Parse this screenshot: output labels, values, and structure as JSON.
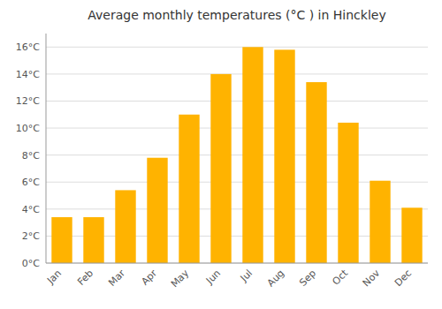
{
  "chart_data": {
    "type": "bar",
    "title": "Average monthly temperatures (°C ) in Hinckley",
    "categories": [
      "Jan",
      "Feb",
      "Mar",
      "Apr",
      "May",
      "Jun",
      "Jul",
      "Aug",
      "Sep",
      "Oct",
      "Nov",
      "Dec"
    ],
    "values": [
      3.4,
      3.4,
      5.4,
      7.8,
      11.0,
      14.0,
      16.0,
      15.8,
      13.4,
      10.4,
      6.1,
      4.1
    ],
    "color": "#FFB300",
    "ylim": [
      0,
      17
    ],
    "yticks": [
      {
        "value": 0,
        "label": "0°C"
      },
      {
        "value": 2,
        "label": "2°C"
      },
      {
        "value": 4,
        "label": "4°C"
      },
      {
        "value": 6,
        "label": "6°C"
      },
      {
        "value": 8,
        "label": "8°C"
      },
      {
        "value": 10,
        "label": "10°C"
      },
      {
        "value": 12,
        "label": "12°C"
      },
      {
        "value": 14,
        "label": "14°C"
      },
      {
        "value": 16,
        "label": "16°C"
      }
    ],
    "grid": true
  }
}
